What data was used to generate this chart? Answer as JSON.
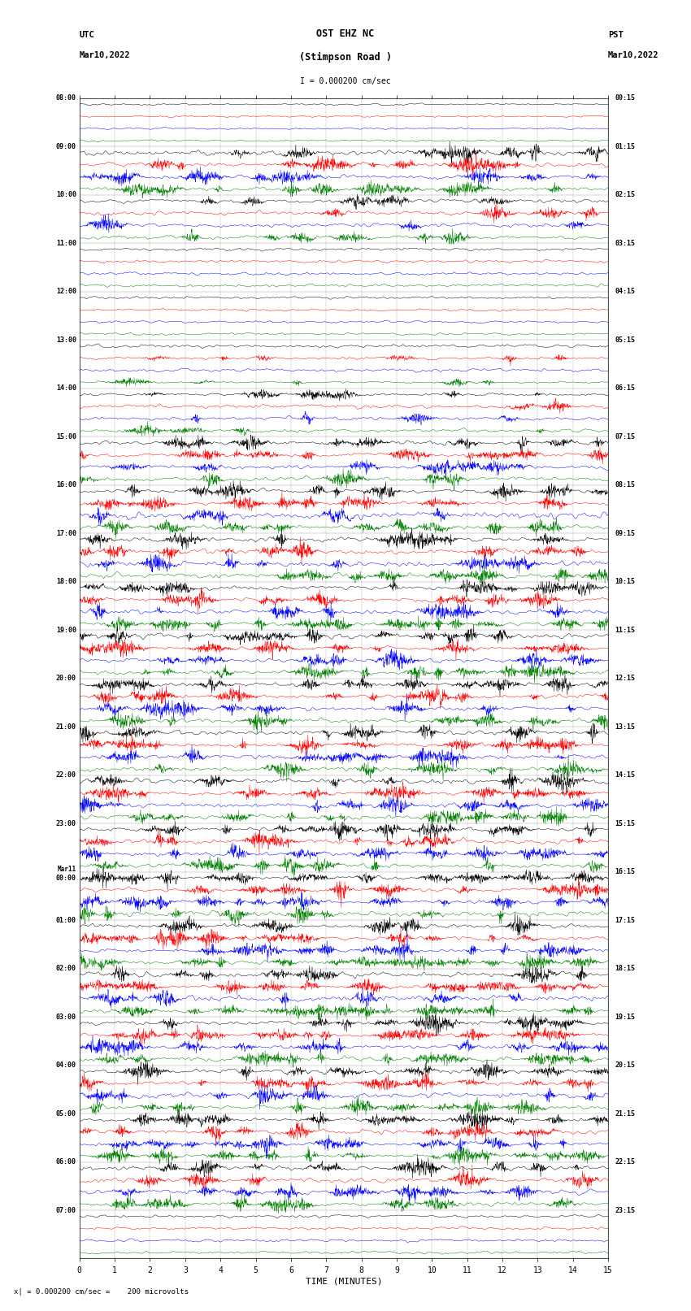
{
  "title_line1": "OST EHZ NC",
  "title_line2": "(Stimpson Road )",
  "scale_text": "I = 0.000200 cm/sec",
  "footer_text": "x| = 0.000200 cm/sec =    200 microvolts",
  "xlabel": "TIME (MINUTES)",
  "utc_times": [
    "08:00",
    "09:00",
    "10:00",
    "11:00",
    "12:00",
    "13:00",
    "14:00",
    "15:00",
    "16:00",
    "17:00",
    "18:00",
    "19:00",
    "20:00",
    "21:00",
    "22:00",
    "23:00",
    "Mar11\n00:00",
    "01:00",
    "02:00",
    "03:00",
    "04:00",
    "05:00",
    "06:00",
    "07:00"
  ],
  "pst_times": [
    "00:15",
    "01:15",
    "02:15",
    "03:15",
    "04:15",
    "05:15",
    "06:15",
    "07:15",
    "08:15",
    "09:15",
    "10:15",
    "11:15",
    "12:15",
    "13:15",
    "14:15",
    "15:15",
    "16:15",
    "17:15",
    "18:15",
    "19:15",
    "20:15",
    "21:15",
    "22:15",
    "23:15"
  ],
  "colors": [
    "black",
    "red",
    "blue",
    "green"
  ],
  "n_hours": 24,
  "traces_per_hour": 4,
  "fig_width": 8.5,
  "fig_height": 16.13,
  "bg_color": "white",
  "x_ticks": [
    0,
    1,
    2,
    3,
    4,
    5,
    6,
    7,
    8,
    9,
    10,
    11,
    12,
    13,
    14,
    15
  ],
  "x_lim": [
    0,
    15
  ],
  "amp_by_hour": [
    0.04,
    0.35,
    0.2,
    0.08,
    0.06,
    0.1,
    0.15,
    0.25,
    0.35,
    0.4,
    0.55,
    0.55,
    0.55,
    0.6,
    0.6,
    0.65,
    0.65,
    0.65,
    0.65,
    0.65,
    0.65,
    0.65,
    0.4,
    0.08
  ],
  "amp_per_color_scale": [
    1.0,
    1.2,
    0.9,
    1.1
  ]
}
